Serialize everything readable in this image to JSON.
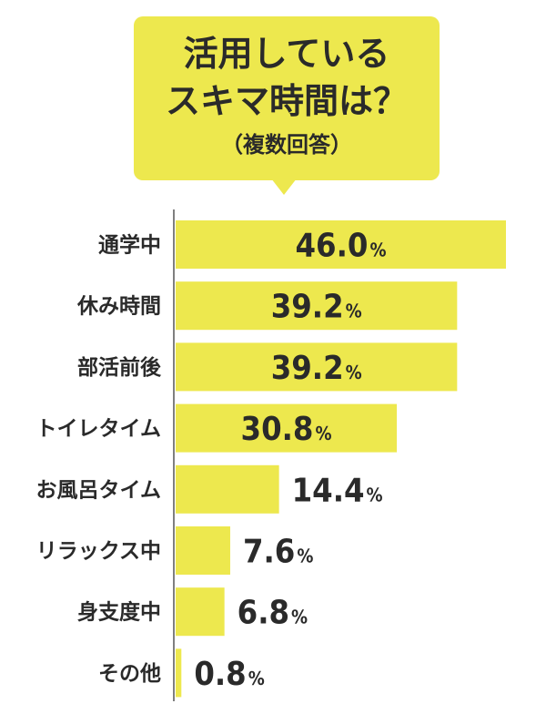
{
  "header": {
    "line1": "活用している",
    "line2": "スキマ時間は？",
    "line3": "（複数回答）"
  },
  "chart_data": {
    "type": "bar",
    "orientation": "horizontal",
    "categories": [
      "通学中",
      "休み時間",
      "部活前後",
      "トイレタイム",
      "お風呂タイム",
      "リラックス中",
      "身支度中",
      "その他"
    ],
    "values": [
      46.0,
      39.2,
      39.2,
      30.8,
      14.4,
      7.6,
      6.8,
      0.8
    ],
    "unit": "%",
    "bar_color": "#EDE84E",
    "grid": false,
    "legend": "none"
  }
}
